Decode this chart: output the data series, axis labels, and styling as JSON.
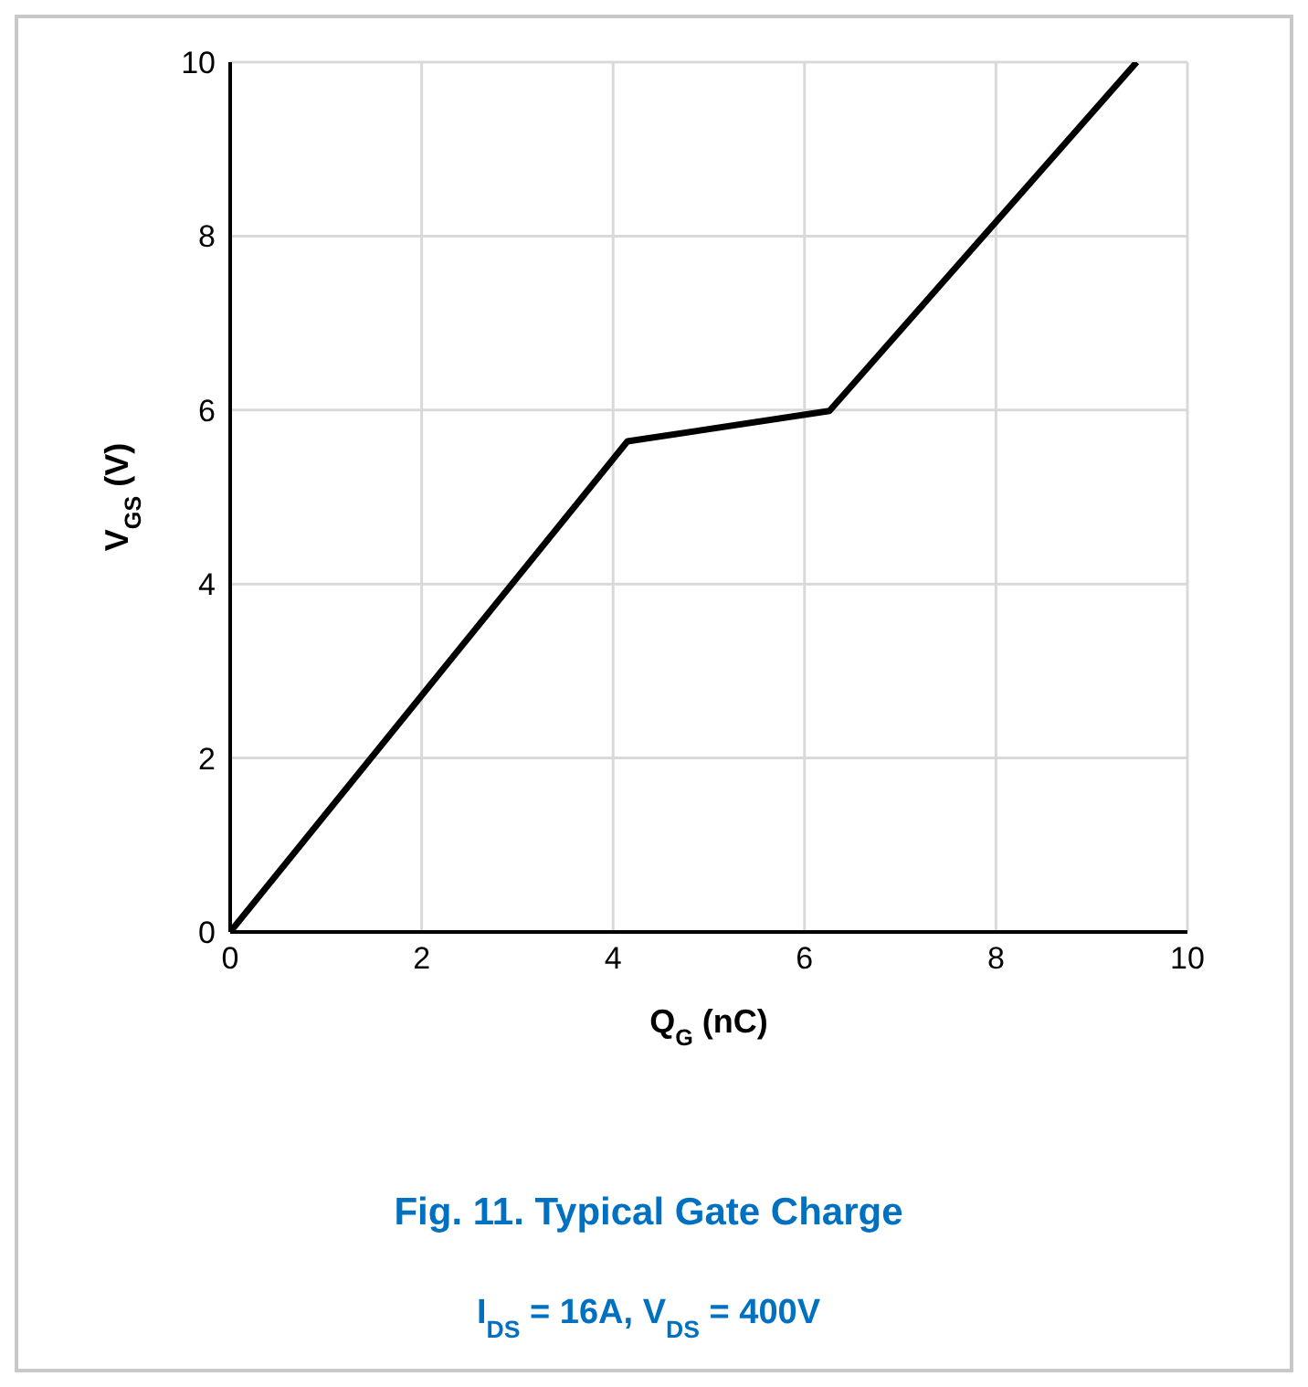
{
  "chart_data": {
    "type": "line",
    "title": "Fig. 11. Typical Gate Charge",
    "subtitle": "I$_{DS}$ = 16A, V$_{DS}$ = 400V",
    "xlabel": "Q$_{G}$ (nC)",
    "ylabel": "V$_{GS}$ (V)",
    "x": [
      0,
      4.15,
      6.26,
      9.47
    ],
    "series": [
      {
        "color": "#000000",
        "values": [
          0,
          5.64,
          5.99,
          10
        ]
      }
    ],
    "xlim": [
      0,
      10
    ],
    "xticks": [
      0,
      2,
      4,
      6,
      8,
      10
    ],
    "ylim": [
      0,
      10
    ],
    "yticks": [
      0,
      2,
      4,
      6,
      8,
      10
    ],
    "grid": true,
    "marker": "none",
    "line_style": "solid",
    "legend": false
  }
}
